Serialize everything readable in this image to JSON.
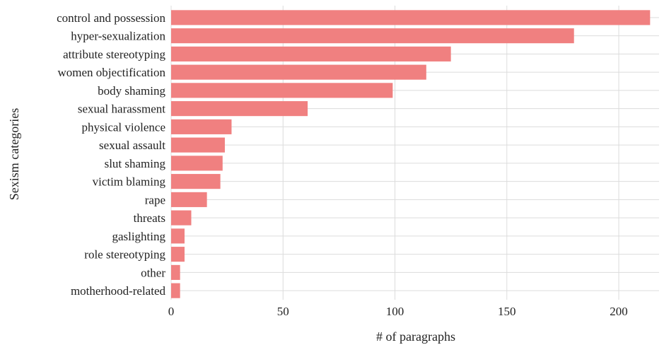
{
  "chart_data": {
    "type": "bar",
    "orientation": "horizontal",
    "title": "",
    "xlabel": "# of paragraphs",
    "ylabel": "Sexism categories",
    "categories": [
      "control and possession",
      "hyper-sexualization",
      "attribute stereotyping",
      "women objectification",
      "body shaming",
      "sexual harassment",
      "physical violence",
      "sexual assault",
      "slut shaming",
      "victim blaming",
      "rape",
      "threats",
      "gaslighting",
      "role stereotyping",
      "other",
      "motherhood-related"
    ],
    "values": [
      214,
      180,
      125,
      114,
      99,
      61,
      27,
      24,
      23,
      22,
      16,
      9,
      6,
      6,
      4,
      4
    ],
    "xlim": [
      0,
      218
    ],
    "xticks": [
      0,
      50,
      100,
      150,
      200
    ],
    "grid": true,
    "bar_color": "#f08080",
    "grid_color": "#dcdcdc"
  }
}
